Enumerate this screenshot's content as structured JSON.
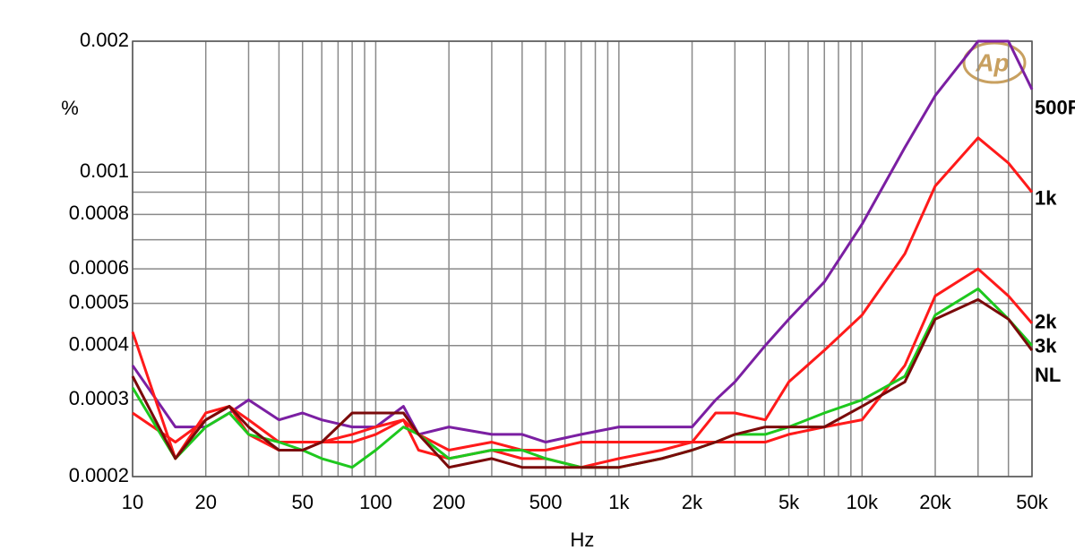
{
  "chart_data": {
    "type": "line",
    "title": null,
    "logo": "Ap",
    "y_label": "%",
    "x_label": "Hz",
    "xscale": "log",
    "yscale": "log",
    "grid": true,
    "xlim": [
      10,
      50000
    ],
    "ylim": [
      0.0002,
      0.002
    ],
    "xticks": [
      10,
      20,
      50,
      100,
      200,
      500,
      {
        "value": 1000,
        "label": "1k"
      },
      {
        "value": 2000,
        "label": "2k"
      },
      {
        "value": 5000,
        "label": "5k"
      },
      {
        "value": 10000,
        "label": "10k"
      },
      {
        "value": 20000,
        "label": "20k"
      },
      {
        "value": 50000,
        "label": "50k"
      }
    ],
    "minor_xticks": [
      30,
      40,
      60,
      70,
      80,
      90,
      300,
      400,
      600,
      700,
      800,
      900,
      3000,
      4000,
      6000,
      7000,
      8000,
      9000,
      30000,
      40000
    ],
    "yticks": [
      0.0002,
      0.0003,
      0.0004,
      0.0005,
      0.0006,
      0.0008,
      0.001,
      0.002
    ],
    "minor_yticks": [
      0.0007,
      0.0009
    ],
    "x": [
      10,
      15,
      20,
      25,
      30,
      40,
      50,
      60,
      80,
      100,
      130,
      150,
      200,
      300,
      400,
      500,
      700,
      1000,
      1500,
      2000,
      2500,
      3000,
      4000,
      5000,
      7000,
      10000,
      15000,
      20000,
      30000,
      40000,
      50000
    ],
    "series": [
      {
        "name": "500R",
        "color": "#7b1fa2",
        "values": [
          0.00036,
          0.00026,
          0.00026,
          0.00028,
          0.0003,
          0.00027,
          0.00028,
          0.00027,
          0.00026,
          0.00026,
          0.00029,
          0.00025,
          0.00026,
          0.00025,
          0.00025,
          0.00024,
          0.00025,
          0.00026,
          0.00026,
          0.00026,
          0.0003,
          0.00033,
          0.0004,
          0.00046,
          0.00056,
          0.00076,
          0.00114,
          0.0015,
          0.002,
          0.002,
          0.00155
        ]
      },
      {
        "name": "1k",
        "color": "#ff1a1a",
        "values": [
          0.00028,
          0.00024,
          0.00027,
          0.00029,
          0.00027,
          0.00024,
          0.00024,
          0.00024,
          0.00024,
          0.00025,
          0.00027,
          0.00025,
          0.00023,
          0.00024,
          0.00023,
          0.00023,
          0.00024,
          0.00024,
          0.00024,
          0.00024,
          0.00028,
          0.00028,
          0.00027,
          0.00033,
          0.00039,
          0.00047,
          0.00065,
          0.00093,
          0.0012,
          0.00105,
          0.0009
        ]
      },
      {
        "name": "2k",
        "color": "#ff1a1a",
        "values": [
          0.00043,
          0.00022,
          0.00028,
          0.00029,
          0.00025,
          0.00023,
          0.00023,
          0.00024,
          0.00025,
          0.00026,
          0.00027,
          0.00023,
          0.00022,
          0.00023,
          0.00022,
          0.00022,
          0.00021,
          0.00022,
          0.00023,
          0.00024,
          0.00024,
          0.00024,
          0.00024,
          0.00025,
          0.00026,
          0.00027,
          0.00036,
          0.00052,
          0.0006,
          0.00052,
          0.00045
        ]
      },
      {
        "name": "3k",
        "color": "#1ec81e",
        "values": [
          0.00032,
          0.00022,
          0.00026,
          0.00028,
          0.00025,
          0.00024,
          0.00023,
          0.00022,
          0.00021,
          0.00023,
          0.00026,
          0.00025,
          0.00022,
          0.00023,
          0.00023,
          0.00022,
          0.00021,
          0.00021,
          0.00022,
          0.00023,
          0.00024,
          0.00025,
          0.00025,
          0.00026,
          0.00028,
          0.0003,
          0.00034,
          0.00047,
          0.00054,
          0.00046,
          0.0004
        ]
      },
      {
        "name": "NL",
        "color": "#7a0a0a",
        "values": [
          0.00034,
          0.00022,
          0.00027,
          0.00029,
          0.00026,
          0.00023,
          0.00023,
          0.00024,
          0.00028,
          0.00028,
          0.00028,
          0.00025,
          0.00021,
          0.00022,
          0.00021,
          0.00021,
          0.00021,
          0.00021,
          0.00022,
          0.00023,
          0.00024,
          0.00025,
          0.00026,
          0.00026,
          0.00026,
          0.00029,
          0.00033,
          0.00046,
          0.00051,
          0.00046,
          0.00039
        ]
      }
    ]
  }
}
